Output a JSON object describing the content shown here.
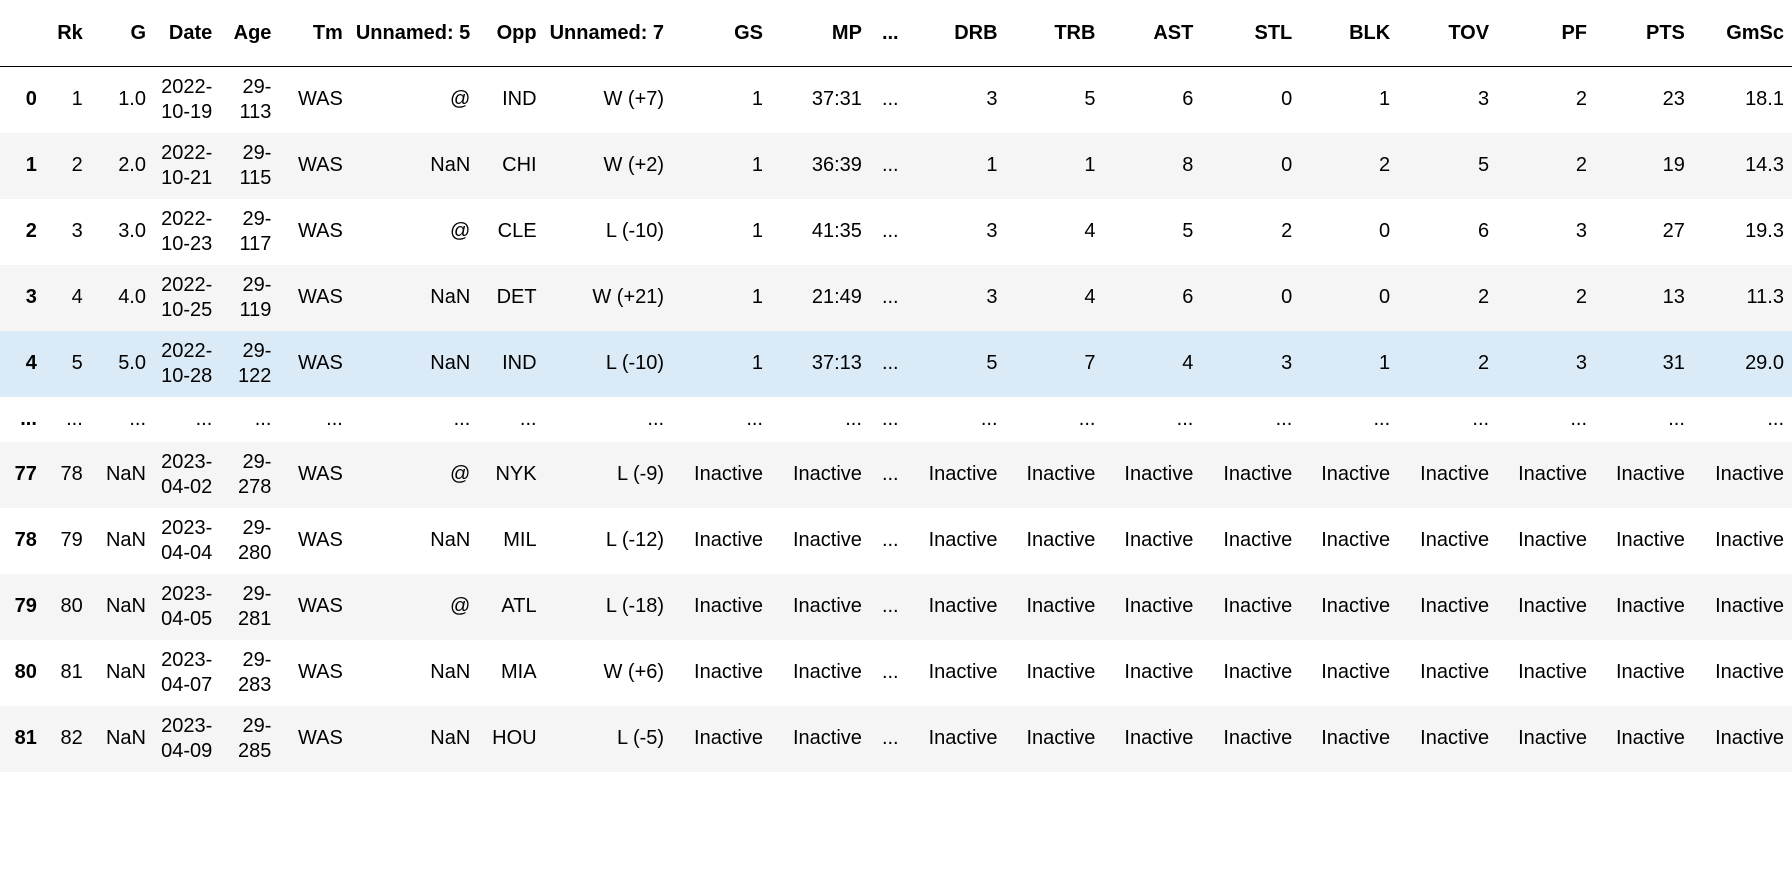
{
  "table": {
    "columns": [
      "",
      "Rk",
      "G",
      "Date",
      "Age",
      "Tm",
      "Unnamed: 5",
      "Opp",
      "Unnamed: 7",
      "GS",
      "MP",
      "...",
      "DRB",
      "TRB",
      "AST",
      "STL",
      "BLK",
      "TOV",
      "PF",
      "PTS",
      "GmSc"
    ],
    "rows": [
      {
        "index": "0",
        "Rk": "1",
        "G": "1.0",
        "Date_a": "2022-",
        "Date_b": "10-19",
        "Age_a": "29-",
        "Age_b": "113",
        "Tm": "WAS",
        "U5": "@",
        "Opp": "IND",
        "U7": "W (+7)",
        "GS": "1",
        "MP": "37:31",
        "dots": "...",
        "DRB": "3",
        "TRB": "5",
        "AST": "6",
        "STL": "0",
        "BLK": "1",
        "TOV": "3",
        "PF": "2",
        "PTS": "23",
        "GmSc": "18.1"
      },
      {
        "index": "1",
        "Rk": "2",
        "G": "2.0",
        "Date_a": "2022-",
        "Date_b": "10-21",
        "Age_a": "29-",
        "Age_b": "115",
        "Tm": "WAS",
        "U5": "NaN",
        "Opp": "CHI",
        "U7": "W (+2)",
        "GS": "1",
        "MP": "36:39",
        "dots": "...",
        "DRB": "1",
        "TRB": "1",
        "AST": "8",
        "STL": "0",
        "BLK": "2",
        "TOV": "5",
        "PF": "2",
        "PTS": "19",
        "GmSc": "14.3"
      },
      {
        "index": "2",
        "Rk": "3",
        "G": "3.0",
        "Date_a": "2022-",
        "Date_b": "10-23",
        "Age_a": "29-",
        "Age_b": "117",
        "Tm": "WAS",
        "U5": "@",
        "Opp": "CLE",
        "U7": "L (-10)",
        "GS": "1",
        "MP": "41:35",
        "dots": "...",
        "DRB": "3",
        "TRB": "4",
        "AST": "5",
        "STL": "2",
        "BLK": "0",
        "TOV": "6",
        "PF": "3",
        "PTS": "27",
        "GmSc": "19.3"
      },
      {
        "index": "3",
        "Rk": "4",
        "G": "4.0",
        "Date_a": "2022-",
        "Date_b": "10-25",
        "Age_a": "29-",
        "Age_b": "119",
        "Tm": "WAS",
        "U5": "NaN",
        "Opp": "DET",
        "U7": "W (+21)",
        "GS": "1",
        "MP": "21:49",
        "dots": "...",
        "DRB": "3",
        "TRB": "4",
        "AST": "6",
        "STL": "0",
        "BLK": "0",
        "TOV": "2",
        "PF": "2",
        "PTS": "13",
        "GmSc": "11.3"
      },
      {
        "index": "4",
        "Rk": "5",
        "G": "5.0",
        "Date_a": "2022-",
        "Date_b": "10-28",
        "Age_a": "29-",
        "Age_b": "122",
        "Tm": "WAS",
        "U5": "NaN",
        "Opp": "IND",
        "U7": "L (-10)",
        "GS": "1",
        "MP": "37:13",
        "dots": "...",
        "DRB": "5",
        "TRB": "7",
        "AST": "4",
        "STL": "3",
        "BLK": "1",
        "TOV": "2",
        "PF": "3",
        "PTS": "31",
        "GmSc": "29.0"
      },
      {
        "index": "...",
        "Rk": "...",
        "G": "...",
        "Date_a": "...",
        "Date_b": "",
        "Age_a": "...",
        "Age_b": "",
        "Tm": "...",
        "U5": "...",
        "Opp": "...",
        "U7": "...",
        "GS": "...",
        "MP": "...",
        "dots": "...",
        "DRB": "...",
        "TRB": "...",
        "AST": "...",
        "STL": "...",
        "BLK": "...",
        "TOV": "...",
        "PF": "...",
        "PTS": "...",
        "GmSc": "..."
      },
      {
        "index": "77",
        "Rk": "78",
        "G": "NaN",
        "Date_a": "2023-",
        "Date_b": "04-02",
        "Age_a": "29-",
        "Age_b": "278",
        "Tm": "WAS",
        "U5": "@",
        "Opp": "NYK",
        "U7": "L (-9)",
        "GS": "Inactive",
        "MP": "Inactive",
        "dots": "...",
        "DRB": "Inactive",
        "TRB": "Inactive",
        "AST": "Inactive",
        "STL": "Inactive",
        "BLK": "Inactive",
        "TOV": "Inactive",
        "PF": "Inactive",
        "PTS": "Inactive",
        "GmSc": "Inactive"
      },
      {
        "index": "78",
        "Rk": "79",
        "G": "NaN",
        "Date_a": "2023-",
        "Date_b": "04-04",
        "Age_a": "29-",
        "Age_b": "280",
        "Tm": "WAS",
        "U5": "NaN",
        "Opp": "MIL",
        "U7": "L (-12)",
        "GS": "Inactive",
        "MP": "Inactive",
        "dots": "...",
        "DRB": "Inactive",
        "TRB": "Inactive",
        "AST": "Inactive",
        "STL": "Inactive",
        "BLK": "Inactive",
        "TOV": "Inactive",
        "PF": "Inactive",
        "PTS": "Inactive",
        "GmSc": "Inactive"
      },
      {
        "index": "79",
        "Rk": "80",
        "G": "NaN",
        "Date_a": "2023-",
        "Date_b": "04-05",
        "Age_a": "29-",
        "Age_b": "281",
        "Tm": "WAS",
        "U5": "@",
        "Opp": "ATL",
        "U7": "L (-18)",
        "GS": "Inactive",
        "MP": "Inactive",
        "dots": "...",
        "DRB": "Inactive",
        "TRB": "Inactive",
        "AST": "Inactive",
        "STL": "Inactive",
        "BLK": "Inactive",
        "TOV": "Inactive",
        "PF": "Inactive",
        "PTS": "Inactive",
        "GmSc": "Inactive"
      },
      {
        "index": "80",
        "Rk": "81",
        "G": "NaN",
        "Date_a": "2023-",
        "Date_b": "04-07",
        "Age_a": "29-",
        "Age_b": "283",
        "Tm": "WAS",
        "U5": "NaN",
        "Opp": "MIA",
        "U7": "W (+6)",
        "GS": "Inactive",
        "MP": "Inactive",
        "dots": "...",
        "DRB": "Inactive",
        "TRB": "Inactive",
        "AST": "Inactive",
        "STL": "Inactive",
        "BLK": "Inactive",
        "TOV": "Inactive",
        "PF": "Inactive",
        "PTS": "Inactive",
        "GmSc": "Inactive"
      },
      {
        "index": "81",
        "Rk": "82",
        "G": "NaN",
        "Date_a": "2023-",
        "Date_b": "04-09",
        "Age_a": "29-",
        "Age_b": "285",
        "Tm": "WAS",
        "U5": "NaN",
        "Opp": "HOU",
        "U7": "L (-5)",
        "GS": "Inactive",
        "MP": "Inactive",
        "dots": "...",
        "DRB": "Inactive",
        "TRB": "Inactive",
        "AST": "Inactive",
        "STL": "Inactive",
        "BLK": "Inactive",
        "TOV": "Inactive",
        "PF": "Inactive",
        "PTS": "Inactive",
        "GmSc": "Inactive"
      }
    ]
  },
  "colors": {
    "stripe": "#f5f5f5",
    "hover_row": "#dbeaf7",
    "header_rule": "#000000"
  }
}
